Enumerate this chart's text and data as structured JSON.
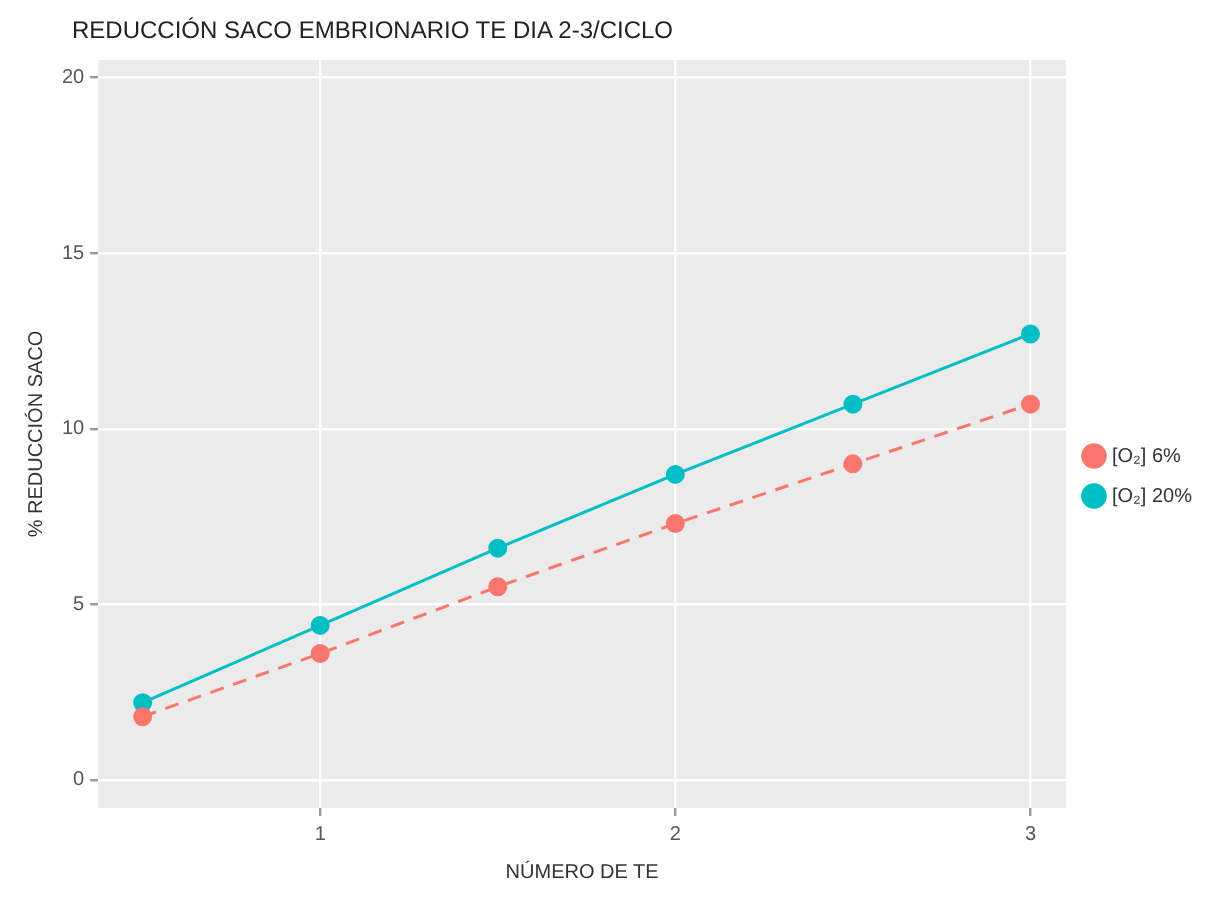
{
  "chart_data": {
    "type": "line",
    "title": "REDUCCIÓN SACO EMBRIONARIO TE DIA 2-3/CICLO",
    "xlabel": "NÚMERO DE TE",
    "ylabel": "% REDUCCIÓN SACO",
    "x": [
      0.5,
      1,
      1.5,
      2,
      2.5,
      3
    ],
    "series": [
      {
        "name": "[O₂] 6%",
        "color": "#f8766d",
        "line_style": "dashed",
        "values": [
          1.8,
          3.6,
          5.5,
          7.3,
          9.0,
          10.7
        ]
      },
      {
        "name": "[O₂] 20%",
        "color": "#00bfc4",
        "line_style": "solid",
        "values": [
          2.2,
          4.4,
          6.6,
          8.7,
          10.7,
          12.7
        ]
      }
    ],
    "xlim": [
      0.375,
      3.1
    ],
    "xticks": [
      1,
      2,
      3
    ],
    "ylim": [
      -0.8,
      20.5
    ],
    "yticks": [
      0,
      5,
      10,
      15,
      20
    ],
    "grid": true,
    "legend": "right",
    "marker": "circle"
  }
}
